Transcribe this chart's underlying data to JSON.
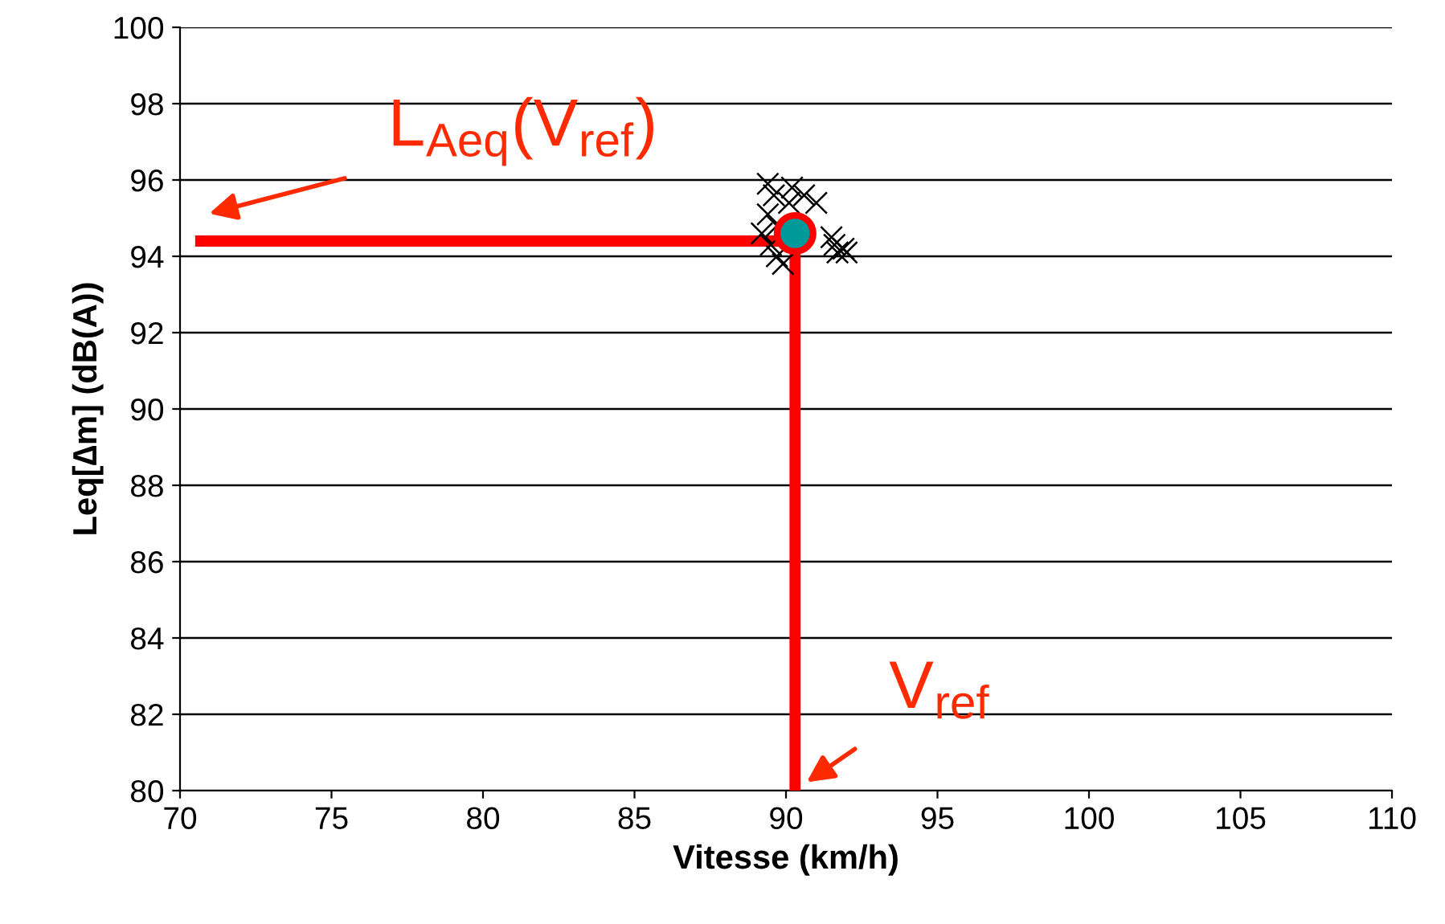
{
  "chart_data": {
    "type": "scatter",
    "xlabel": "Vitesse (km/h)",
    "ylabel": "Leq[∆m] (dB(A))",
    "xlim": [
      70,
      110
    ],
    "xticks": [
      70,
      75,
      80,
      85,
      90,
      95,
      100,
      105,
      110
    ],
    "ylim": [
      80,
      100
    ],
    "yticks": [
      80,
      82,
      84,
      86,
      88,
      90,
      92,
      94,
      96,
      98,
      100
    ],
    "grid": "y",
    "legend": false,
    "series": [
      {
        "marker": "cross",
        "color": "#000000",
        "x": [
          89.4,
          89.6,
          90.2,
          90.1,
          90.6,
          91.0,
          89.4,
          89.7,
          89.2,
          89.5,
          89.7,
          89.9,
          91.6,
          91.9,
          91.7,
          92.0,
          91.5
        ],
        "values": [
          95.9,
          95.6,
          95.8,
          95.4,
          95.6,
          95.4,
          95.1,
          94.8,
          94.6,
          94.3,
          94.0,
          93.8,
          94.3,
          94.2,
          94.1,
          94.1,
          94.5
        ]
      },
      {
        "type": "line",
        "marker": "none",
        "color": "#ff0000",
        "x": [
          70.5,
          90.3
        ],
        "values": [
          94.4,
          94.4
        ]
      },
      {
        "type": "line",
        "marker": "none",
        "color": "#ff0000",
        "x": [
          90.3,
          90.3
        ],
        "values": [
          94.5,
          80
        ]
      },
      {
        "marker": "circle",
        "color": "#009999",
        "x": [
          90.3
        ],
        "values": [
          94.6
        ]
      }
    ],
    "annotations": [
      "L$_{Aeq}$(V$_{ref}$)",
      "V$_{ref}$"
    ]
  }
}
